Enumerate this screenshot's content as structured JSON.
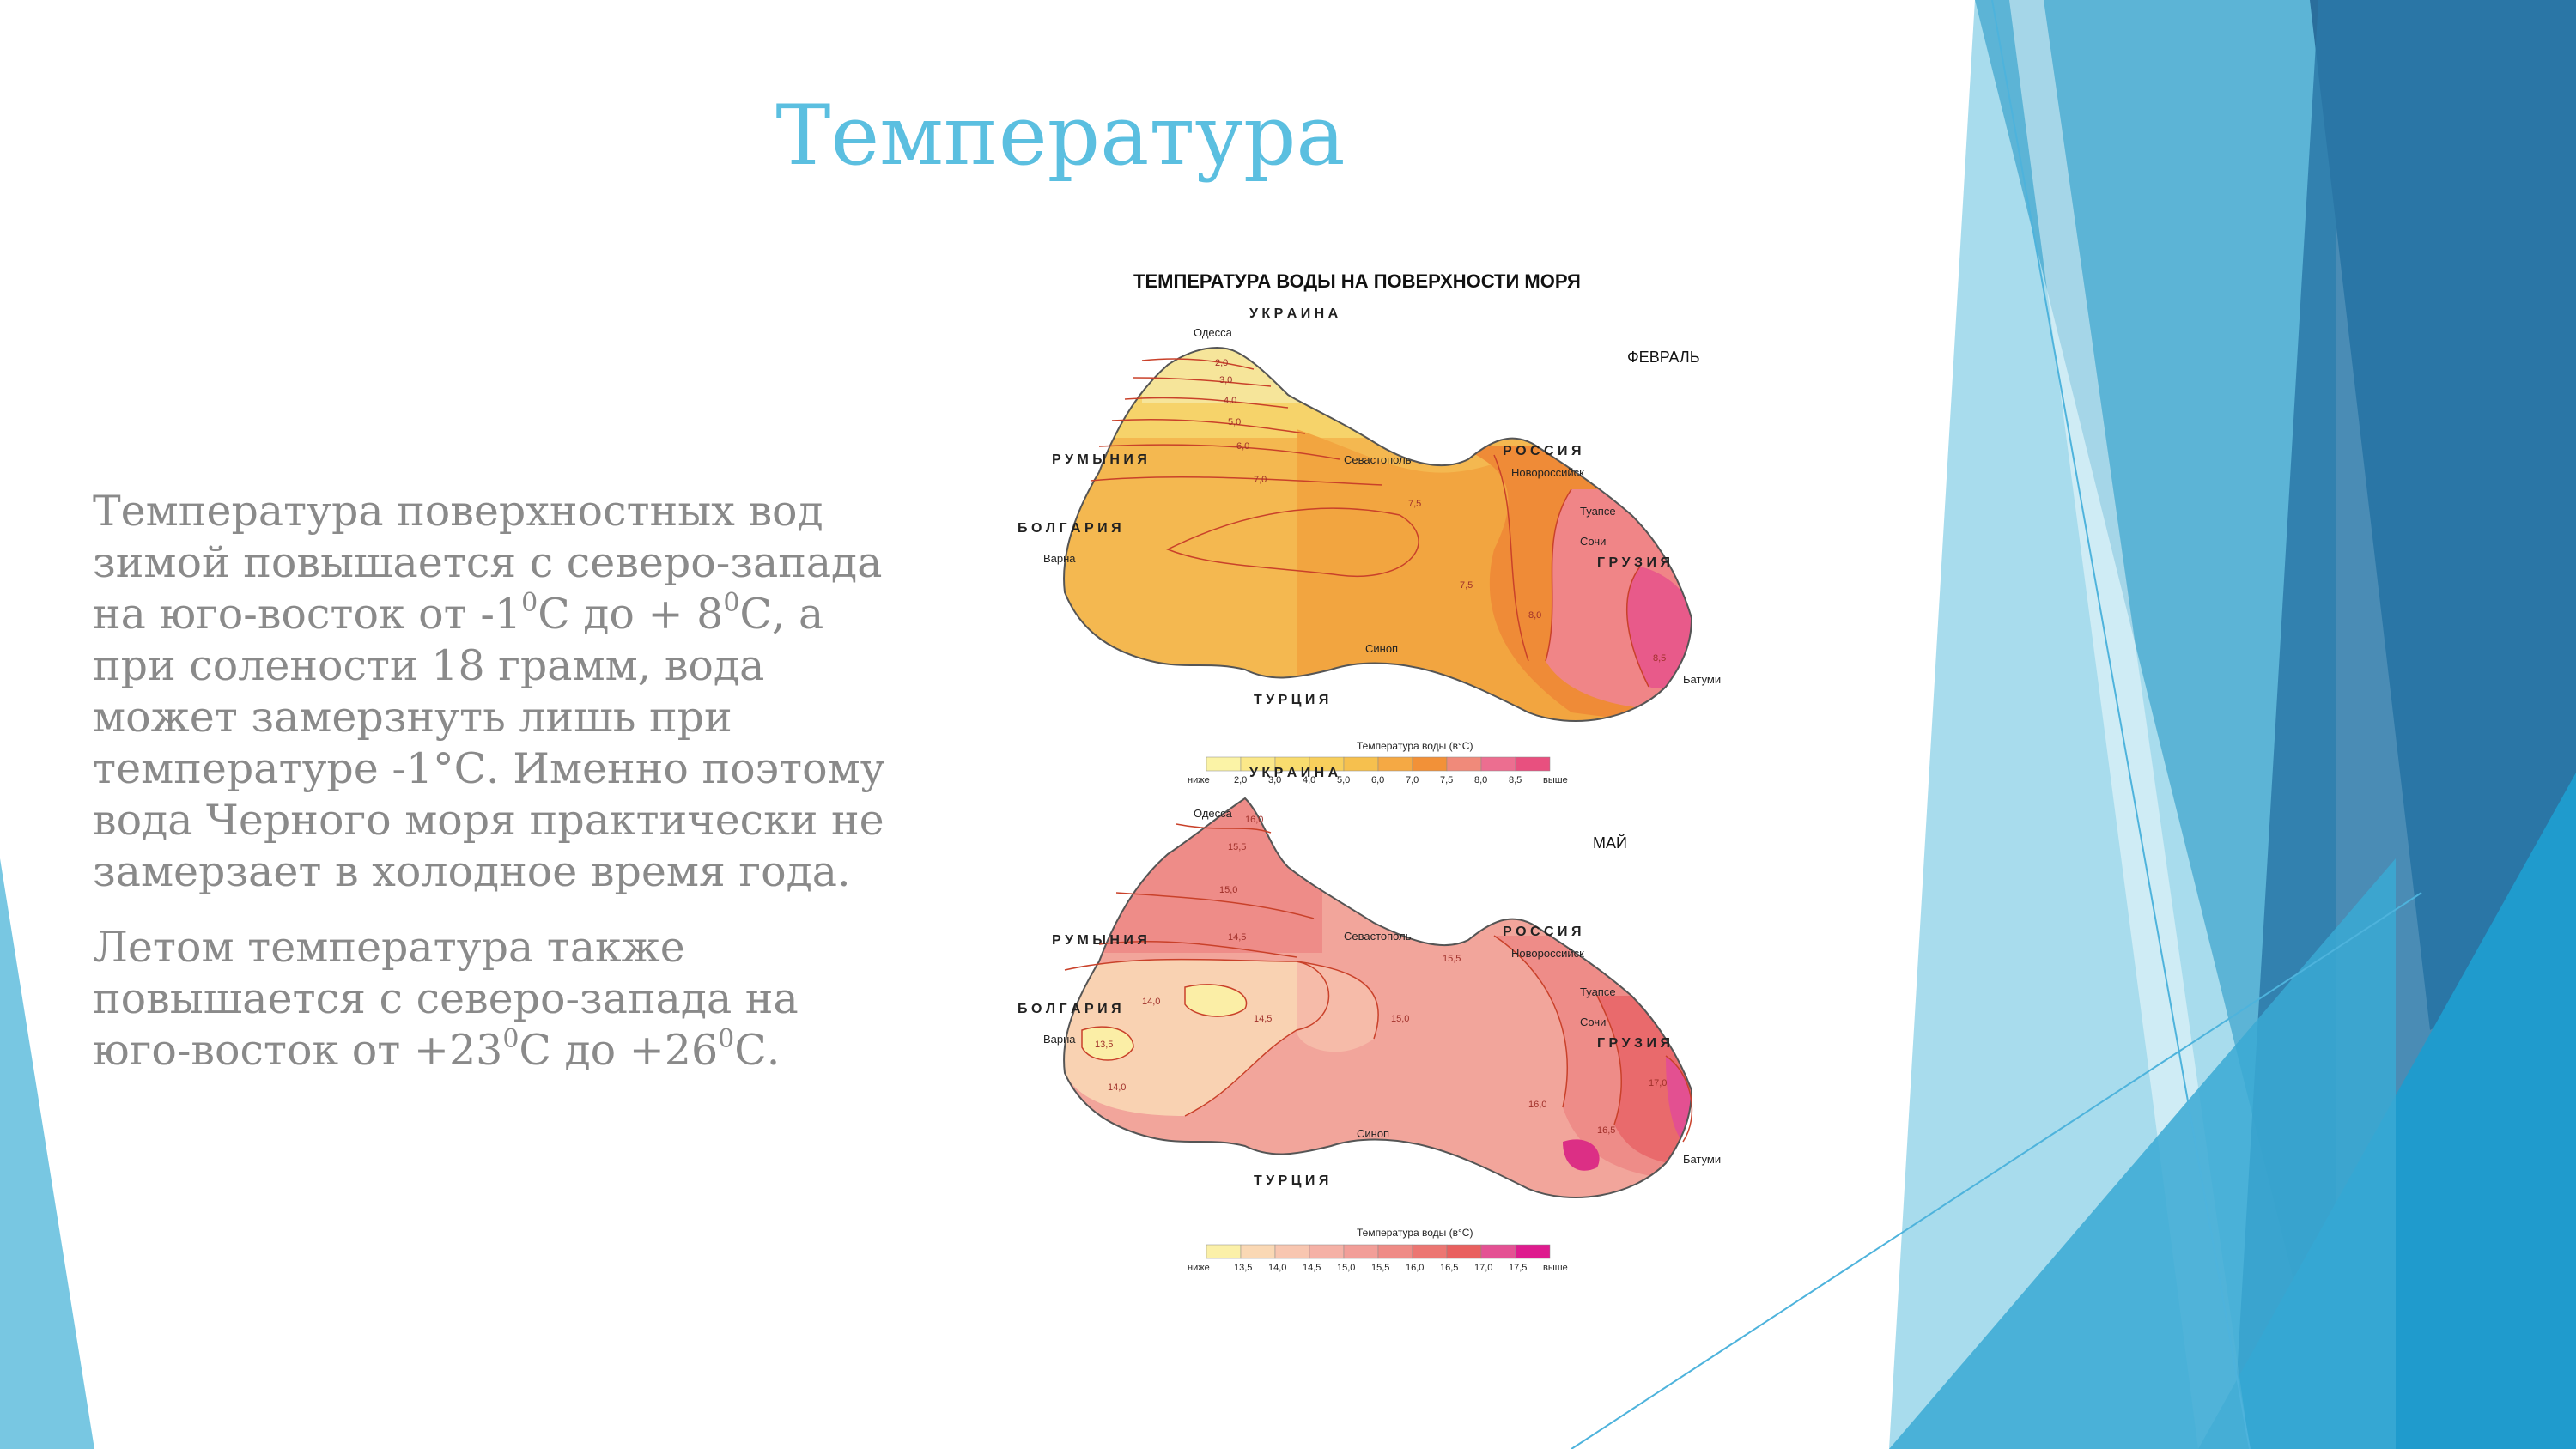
{
  "slide": {
    "title": "Температура",
    "paragraph1": {
      "line1": "Температура поверхностных вод",
      "line2": "зимой повышается с северо-запада",
      "line3_a": "на юго-восток  от -1",
      "line3_sup1": "0",
      "line3_b": "С до + 8",
      "line3_sup2": "0",
      "line3_c": "С, а",
      "line4": "при солености 18 грамм, вода",
      "line5": "может замерзнуть лишь при",
      "line6": "температуре -1°С. Именно поэтому",
      "line7": "вода Черного моря практически не",
      "line8": "замерзает в холодное время года."
    },
    "paragraph2": {
      "line1": "Летом температура также",
      "line2": "повышается с северо-запада на",
      "line3_a": "юго-восток от +23",
      "line3_sup1": "0",
      "line3_b": "С до +26",
      "line3_sup2": "0",
      "line3_c": "С."
    }
  },
  "figure": {
    "heading": "ТЕМПЕРАТУРА ВОДЫ НА ПОВЕРХНОСТИ МОРЯ",
    "maps": [
      {
        "season": "ФЕВРАЛЬ",
        "legend_title": "Температура воды (в°С)",
        "legend_low": "ниже",
        "legend_high": "выше",
        "legend_values": [
          "2,0",
          "3,0",
          "4,0",
          "5,0",
          "6,0",
          "7,0",
          "7,5",
          "8,0",
          "8,5"
        ],
        "legend_colors": [
          "#fbf3a6",
          "#fbe889",
          "#f9dc6e",
          "#f8cf5c",
          "#f6c04e",
          "#f5a944",
          "#f29138",
          "#f08a7a",
          "#ec6e90",
          "#e8507f"
        ],
        "region_colors": [
          "#f6e59a",
          "#f6d36a",
          "#f4b850",
          "#f2a540",
          "#ef8b37",
          "#f08587",
          "#e85a8a"
        ]
      },
      {
        "season": "МАЙ",
        "legend_title": "Температура воды (в°С)",
        "legend_low": "ниже",
        "legend_high": "выше",
        "legend_values": [
          "13,5",
          "14,0",
          "14,5",
          "15,0",
          "15,5",
          "16,0",
          "16,5",
          "17,0",
          "17,5"
        ],
        "legend_colors": [
          "#fbf0a8",
          "#fad8b4",
          "#f8c6b0",
          "#f5b1a6",
          "#f29e98",
          "#ef8b86",
          "#ec7672",
          "#e9605f",
          "#e45193",
          "#de1b8e"
        ],
        "region_colors": [
          "#fbeea6",
          "#f9d2b2",
          "#f6bba9",
          "#f2a59b",
          "#ee8c88",
          "#e96a6c",
          "#e35091",
          "#dc2f85"
        ]
      }
    ],
    "place_labels": [
      "Одесса",
      "Севастополь",
      "Новороссийск",
      "Туапсе",
      "Сочи",
      "Батуми",
      "Синоп",
      "Варна"
    ],
    "country_labels": [
      "У К Р А И Н А",
      "Р О С С И Я",
      "Г Р У З И Я",
      "Т У Р Ц И Я",
      "Р У М Ы Н И Я",
      "Б О Л Г А Р И Я"
    ],
    "feb_isotherms": [
      "2,0",
      "3,0",
      "4,0",
      "5,0",
      "6,0",
      "7,0",
      "7,5",
      "7,5",
      "8,0",
      "8,5"
    ],
    "may_isotherms": [
      "16,0",
      "15,5",
      "15,0",
      "14,5",
      "14,0",
      "13,5",
      "14,0",
      "14,5",
      "15,0",
      "15,5",
      "16,0",
      "16,5",
      "17,0"
    ]
  }
}
